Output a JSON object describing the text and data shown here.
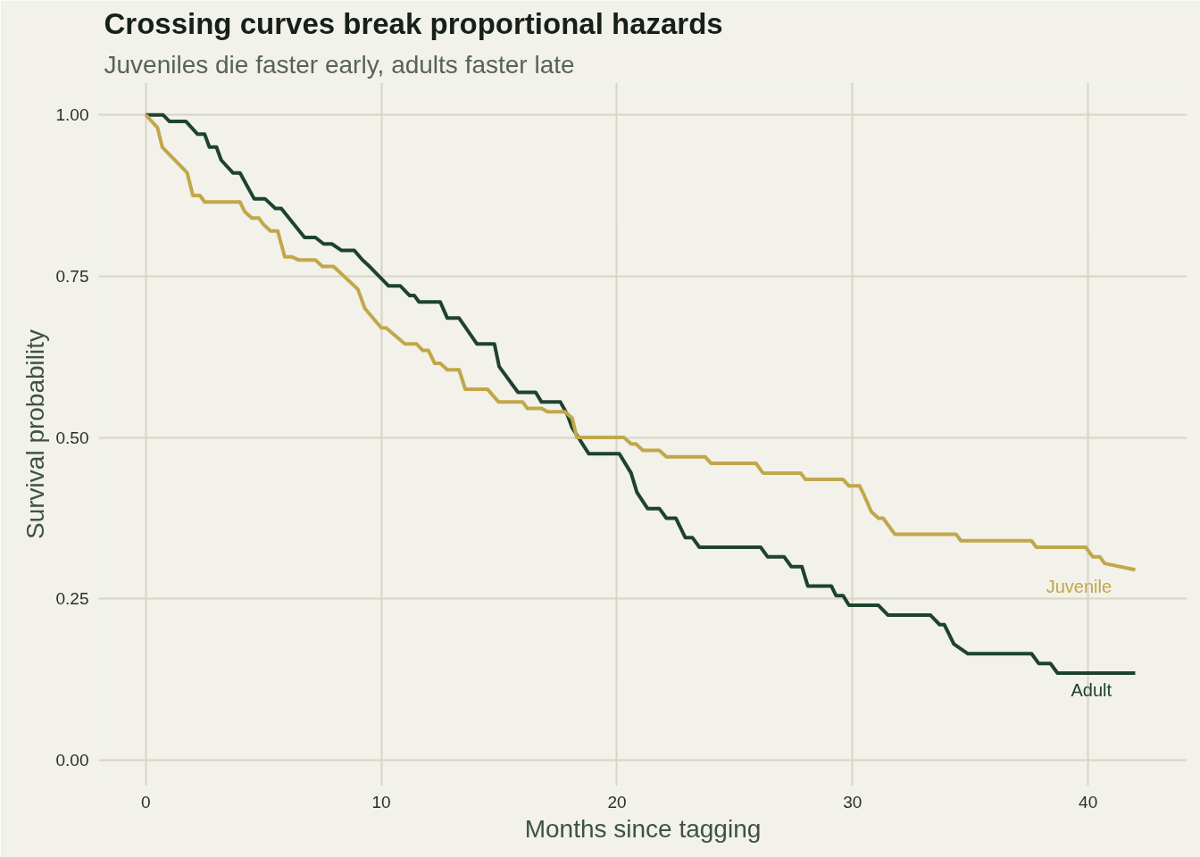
{
  "chart_data": {
    "type": "line",
    "title": "Crossing curves break proportional hazards",
    "subtitle": "Juveniles die faster early, adults faster late",
    "xlabel": "Months since tagging",
    "ylabel": "Survival probability",
    "series": [
      {
        "name": "Adult",
        "color": "#1e4230",
        "x": [
          0,
          0.73,
          1.0,
          1.7,
          2.2,
          2.5,
          2.7,
          3.0,
          3.2,
          3.7,
          4.0,
          4.6,
          5.06,
          5.5,
          5.75,
          6.74,
          7.2,
          7.55,
          7.9,
          8.3,
          8.85,
          9.2,
          9.5,
          10.3,
          10.8,
          11.2,
          11.4,
          11.6,
          12.5,
          12.8,
          13.3,
          14.06,
          14.8,
          15.0,
          15.8,
          16.55,
          16.8,
          17.6,
          17.9,
          18.1,
          18.8,
          20.1,
          20.6,
          20.85,
          21.3,
          21.8,
          22.1,
          22.5,
          22.9,
          23.2,
          23.5,
          26.1,
          26.4,
          27.1,
          27.4,
          27.85,
          28.1,
          29.1,
          29.3,
          29.6,
          29.85,
          31.1,
          31.5,
          33.3,
          33.7,
          33.9,
          34.3,
          34.9,
          37.6,
          37.9,
          38.4,
          38.7,
          42.0
        ],
        "values": [
          1.0,
          1.0,
          0.99,
          0.99,
          0.97,
          0.97,
          0.95,
          0.95,
          0.93,
          0.91,
          0.91,
          0.87,
          0.87,
          0.855,
          0.855,
          0.81,
          0.81,
          0.8,
          0.8,
          0.79,
          0.79,
          0.775,
          0.765,
          0.735,
          0.735,
          0.72,
          0.72,
          0.71,
          0.71,
          0.685,
          0.685,
          0.645,
          0.645,
          0.61,
          0.57,
          0.57,
          0.555,
          0.555,
          0.535,
          0.515,
          0.475,
          0.475,
          0.445,
          0.415,
          0.39,
          0.39,
          0.375,
          0.375,
          0.345,
          0.345,
          0.33,
          0.33,
          0.315,
          0.315,
          0.3,
          0.3,
          0.27,
          0.27,
          0.255,
          0.255,
          0.24,
          0.24,
          0.225,
          0.225,
          0.21,
          0.21,
          0.18,
          0.165,
          0.165,
          0.15,
          0.15,
          0.135,
          0.135
        ]
      },
      {
        "name": "Juvenile",
        "color": "#c2a74a",
        "x": [
          0,
          0.5,
          0.7,
          1.76,
          2.0,
          2.3,
          2.5,
          4.0,
          4.2,
          4.5,
          4.8,
          5.0,
          5.3,
          5.6,
          5.9,
          6.2,
          6.5,
          7.2,
          7.5,
          7.97,
          9.0,
          9.3,
          10.0,
          10.2,
          11.0,
          11.5,
          11.76,
          12.0,
          12.26,
          12.5,
          12.8,
          13.3,
          13.56,
          14.5,
          14.98,
          16.0,
          16.2,
          16.8,
          17.05,
          17.8,
          18.1,
          18.3,
          20.3,
          20.6,
          20.8,
          21.1,
          21.8,
          22.1,
          23.75,
          24.0,
          25.9,
          26.2,
          27.8,
          28.0,
          29.6,
          29.85,
          30.3,
          30.5,
          30.8,
          31.1,
          31.3,
          31.8,
          34.4,
          34.6,
          37.6,
          37.8,
          39.9,
          40.2,
          40.5,
          40.7,
          42.0
        ],
        "values": [
          1.0,
          0.98,
          0.95,
          0.91,
          0.875,
          0.875,
          0.865,
          0.865,
          0.85,
          0.84,
          0.84,
          0.83,
          0.82,
          0.82,
          0.78,
          0.78,
          0.775,
          0.775,
          0.765,
          0.765,
          0.73,
          0.7,
          0.67,
          0.67,
          0.645,
          0.645,
          0.635,
          0.635,
          0.615,
          0.615,
          0.605,
          0.605,
          0.575,
          0.575,
          0.555,
          0.555,
          0.545,
          0.545,
          0.54,
          0.54,
          0.53,
          0.5,
          0.5,
          0.49,
          0.49,
          0.48,
          0.48,
          0.47,
          0.47,
          0.46,
          0.46,
          0.445,
          0.445,
          0.435,
          0.435,
          0.425,
          0.425,
          0.41,
          0.385,
          0.375,
          0.375,
          0.35,
          0.35,
          0.34,
          0.34,
          0.33,
          0.33,
          0.315,
          0.315,
          0.305,
          0.295
        ]
      }
    ],
    "xlim": [
      -2,
      44.2
    ],
    "ylim": [
      -0.04,
      1.05
    ],
    "xticks": [
      0,
      10,
      20,
      30,
      40
    ],
    "yticks": [
      {
        "value": 0,
        "label": "0.00"
      },
      {
        "value": 0.25,
        "label": "0.25"
      },
      {
        "value": 0.5,
        "label": "0.50"
      },
      {
        "value": 0.75,
        "label": "0.75"
      },
      {
        "value": 1.0,
        "label": "1.00"
      }
    ],
    "grid": true,
    "legend": false,
    "marker": "none",
    "line_style": "solid"
  }
}
